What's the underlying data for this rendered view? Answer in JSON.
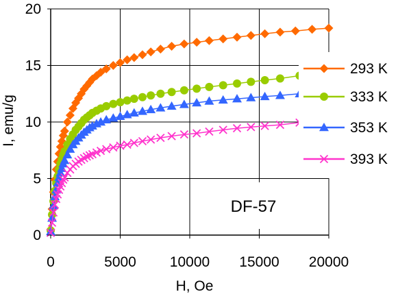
{
  "chart_data": {
    "type": "scatter",
    "title": "",
    "xlabel": "H, Oe",
    "ylabel": "I, emu/g",
    "xlim": [
      0,
      20000
    ],
    "ylim": [
      0,
      20
    ],
    "xticks": [
      "0",
      "5000",
      "10000",
      "15000",
      "20000"
    ],
    "yticks": [
      "0",
      "5",
      "10",
      "15",
      "20"
    ],
    "grid": true,
    "legend_position": "right",
    "annotation": "DF-57",
    "series": [
      {
        "name": "293 K",
        "color": "#ff6a00",
        "marker": "diamond",
        "x": [
          0,
          100,
          200,
          300,
          400,
          500,
          600,
          700,
          800,
          900,
          1000,
          1200,
          1400,
          1600,
          1800,
          2000,
          2200,
          2400,
          2600,
          2800,
          3000,
          3300,
          3600,
          4000,
          4500,
          5000,
          5500,
          6000,
          6600,
          7200,
          7900,
          8700,
          9600,
          10500,
          11400,
          12400,
          13400,
          14400,
          15400,
          16500,
          17600,
          18800,
          20000
        ],
        "y": [
          0.5,
          2.3,
          3.8,
          4.9,
          5.8,
          6.5,
          7.2,
          7.8,
          8.3,
          8.8,
          9.2,
          10.0,
          10.6,
          11.2,
          11.7,
          12.1,
          12.5,
          12.9,
          13.2,
          13.5,
          13.8,
          14.1,
          14.4,
          14.7,
          15.0,
          15.25,
          15.5,
          15.7,
          15.95,
          16.2,
          16.45,
          16.7,
          16.9,
          17.05,
          17.2,
          17.35,
          17.5,
          17.65,
          17.8,
          17.95,
          18.05,
          18.2,
          18.3
        ]
      },
      {
        "name": "333 K",
        "color": "#99cc00",
        "marker": "circle",
        "x": [
          0,
          100,
          200,
          300,
          400,
          500,
          600,
          700,
          800,
          900,
          1000,
          1200,
          1400,
          1600,
          1800,
          2000,
          2200,
          2400,
          2600,
          2800,
          3000,
          3300,
          3600,
          4000,
          4500,
          5000,
          5500,
          6000,
          6600,
          7200,
          7900,
          8700,
          9600,
          10500,
          11400,
          12400,
          13400,
          14400,
          15400,
          16500,
          17900
        ],
        "y": [
          0.4,
          1.8,
          3.0,
          3.9,
          4.6,
          5.2,
          5.8,
          6.3,
          6.7,
          7.1,
          7.4,
          8.0,
          8.5,
          8.9,
          9.3,
          9.6,
          9.9,
          10.2,
          10.4,
          10.6,
          10.8,
          11.0,
          11.2,
          11.4,
          11.6,
          11.75,
          11.9,
          12.05,
          12.2,
          12.35,
          12.5,
          12.65,
          12.8,
          12.95,
          13.1,
          13.25,
          13.4,
          13.55,
          13.7,
          13.85,
          14.1
        ]
      },
      {
        "name": "353 K",
        "color": "#3366ff",
        "marker": "triangle",
        "x": [
          0,
          100,
          200,
          300,
          400,
          500,
          600,
          700,
          800,
          900,
          1000,
          1200,
          1400,
          1600,
          1800,
          2000,
          2200,
          2400,
          2600,
          2800,
          3000,
          3300,
          3600,
          4000,
          4500,
          5000,
          5500,
          6000,
          6600,
          7200,
          7900,
          8700,
          9600,
          10500,
          11400,
          12400,
          13400,
          14400,
          15400,
          16500,
          17900
        ],
        "y": [
          0.3,
          1.5,
          2.6,
          3.4,
          4.0,
          4.6,
          5.1,
          5.5,
          5.9,
          6.3,
          6.6,
          7.1,
          7.6,
          8.0,
          8.3,
          8.6,
          8.85,
          9.1,
          9.3,
          9.5,
          9.65,
          9.85,
          10.0,
          10.2,
          10.35,
          10.5,
          10.65,
          10.8,
          10.95,
          11.1,
          11.25,
          11.4,
          11.55,
          11.7,
          11.85,
          11.95,
          12.05,
          12.15,
          12.25,
          12.35,
          12.5
        ]
      },
      {
        "name": "393 K",
        "color": "#ff33cc",
        "marker": "x",
        "x": [
          0,
          100,
          200,
          300,
          400,
          500,
          600,
          700,
          800,
          900,
          1000,
          1200,
          1400,
          1600,
          1800,
          2000,
          2200,
          2400,
          2600,
          2800,
          3000,
          3300,
          3600,
          4000,
          4500,
          5000,
          5500,
          6000,
          6600,
          7200,
          7900,
          8700,
          9600,
          10500,
          11400,
          12400,
          13400,
          14400,
          15400,
          16500,
          17900
        ],
        "y": [
          0.2,
          1.1,
          2.0,
          2.7,
          3.2,
          3.6,
          4.0,
          4.3,
          4.6,
          4.9,
          5.1,
          5.5,
          5.8,
          6.1,
          6.3,
          6.5,
          6.65,
          6.8,
          6.95,
          7.05,
          7.15,
          7.3,
          7.45,
          7.6,
          7.75,
          7.9,
          8.0,
          8.15,
          8.3,
          8.45,
          8.6,
          8.75,
          8.9,
          9.0,
          9.15,
          9.3,
          9.45,
          9.55,
          9.65,
          9.75,
          9.95
        ]
      }
    ]
  }
}
